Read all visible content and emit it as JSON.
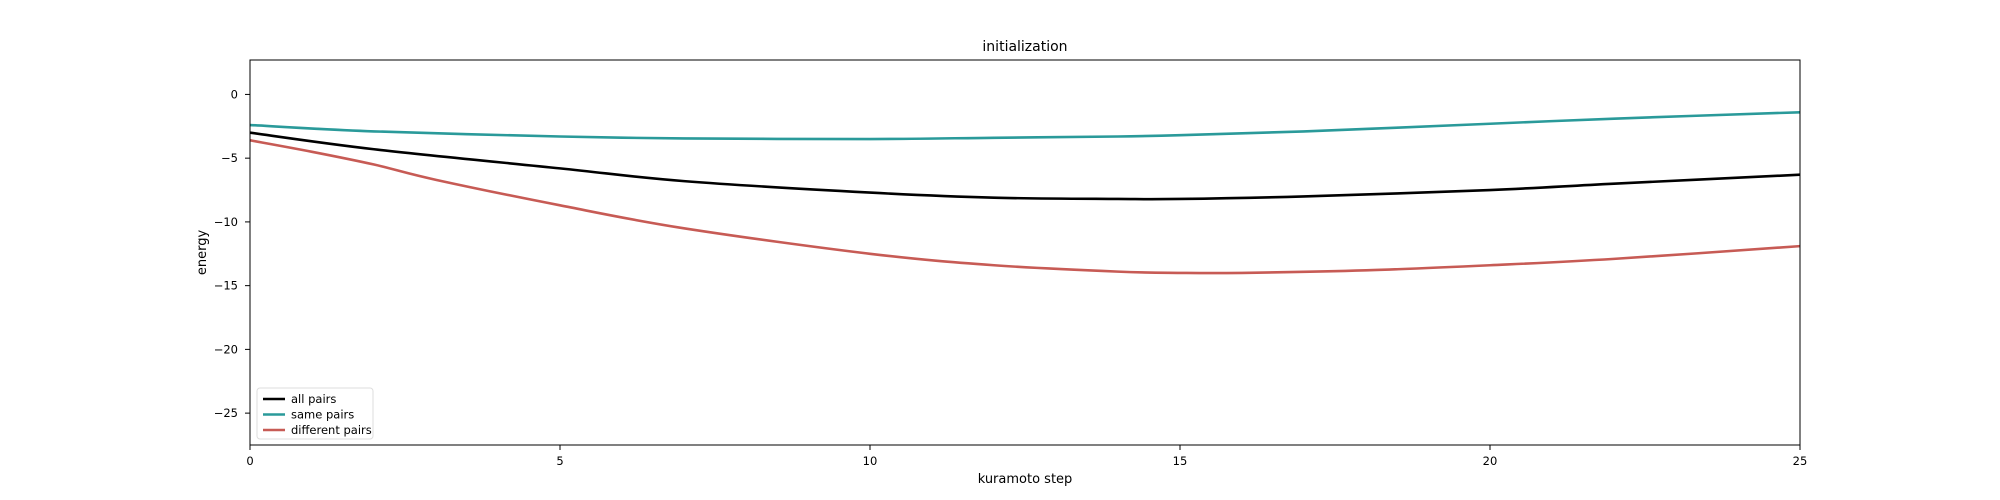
{
  "chart_data": {
    "type": "line",
    "title": "initialization",
    "xlabel": "kuramoto step",
    "ylabel": "energy",
    "xlim": [
      0,
      25
    ],
    "ylim": [
      -27.5,
      2.7
    ],
    "xticks": [
      0,
      5,
      10,
      15,
      20,
      25
    ],
    "yticks": [
      0,
      -5,
      -10,
      -15,
      -20,
      -25
    ],
    "grid": false,
    "legend_position": "lower-left",
    "series": [
      {
        "name": "all pairs",
        "color": "#000000",
        "x": [
          0,
          2,
          5,
          7,
          10,
          12,
          14,
          15,
          17,
          20,
          22,
          25
        ],
        "y": [
          -3.0,
          -4.3,
          -5.8,
          -6.8,
          -7.7,
          -8.1,
          -8.2,
          -8.2,
          -8.0,
          -7.5,
          -7.0,
          -6.3
        ]
      },
      {
        "name": "same pairs",
        "color": "#2a9a9a",
        "x": [
          0,
          2,
          5,
          7,
          10,
          12,
          14,
          15,
          17,
          20,
          22,
          25
        ],
        "y": [
          -2.4,
          -2.9,
          -3.3,
          -3.45,
          -3.5,
          -3.4,
          -3.3,
          -3.2,
          -2.9,
          -2.3,
          -1.9,
          -1.4
        ]
      },
      {
        "name": "different pairs",
        "color": "#c75b55",
        "x": [
          0,
          1,
          2,
          3,
          5,
          7,
          10,
          12,
          14,
          15,
          16,
          18,
          20,
          22,
          25
        ],
        "y": [
          -3.6,
          -4.5,
          -5.5,
          -6.7,
          -8.7,
          -10.5,
          -12.5,
          -13.4,
          -13.9,
          -14.0,
          -14.0,
          -13.8,
          -13.4,
          -12.9,
          -11.9
        ]
      }
    ]
  }
}
